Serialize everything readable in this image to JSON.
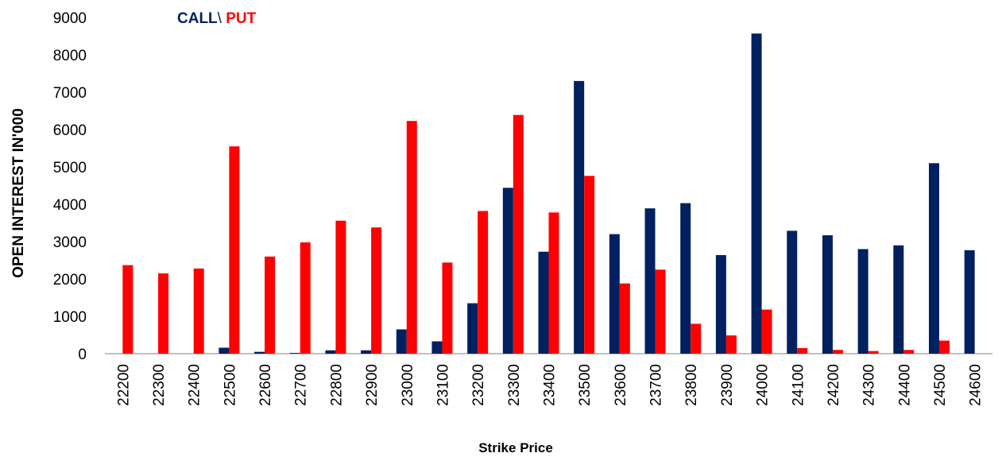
{
  "chart_data": {
    "type": "bar",
    "categories": [
      "22200",
      "22300",
      "22400",
      "22500",
      "22600",
      "22700",
      "22800",
      "22900",
      "23000",
      "23100",
      "23200",
      "23300",
      "23400",
      "23500",
      "23600",
      "23700",
      "23800",
      "23900",
      "24000",
      "24100",
      "24200",
      "24300",
      "24400",
      "24500",
      "24600"
    ],
    "series": [
      {
        "name": "CALL",
        "color": "#002060",
        "values": [
          0,
          0,
          0,
          160,
          50,
          20,
          90,
          90,
          650,
          330,
          1350,
          4440,
          2730,
          7300,
          3200,
          3890,
          4030,
          2640,
          8570,
          3290,
          3170,
          2800,
          2900,
          5100,
          2770
        ]
      },
      {
        "name": "PUT",
        "color": "#ff0000",
        "values": [
          2370,
          2150,
          2280,
          5550,
          2600,
          2980,
          3560,
          3380,
          6230,
          2440,
          3820,
          6390,
          3780,
          4760,
          1880,
          2250,
          800,
          490,
          1180,
          150,
          100,
          70,
          100,
          350,
          0
        ]
      }
    ],
    "xlabel": "Strike Price",
    "ylabel": "OPEN INTEREST IN'000",
    "ylim": [
      0,
      9000
    ],
    "yticks": [
      "0",
      "1000",
      "2000",
      "3000",
      "4000",
      "5000",
      "6000",
      "7000",
      "8000",
      "9000"
    ],
    "legend": {
      "call": "CALL",
      "separator": "\\ ",
      "put": "PUT",
      "position": "top-left"
    },
    "grid": false
  }
}
